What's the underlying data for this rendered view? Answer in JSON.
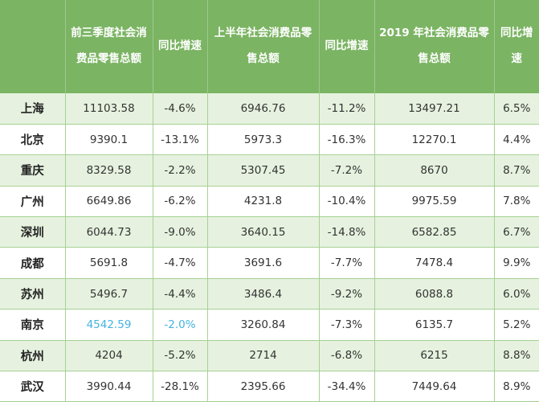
{
  "headers": [
    "",
    "前三季度社会消费品零售总额",
    "同比增速",
    "上半年社会消费品零售总额",
    "同比增速",
    "2019 年社会消费品零售总额",
    "同比增速"
  ],
  "rows": [
    [
      "上海",
      "11103.58",
      "-4.6%",
      "6946.76",
      "-11.2%",
      "13497.21",
      "6.5%"
    ],
    [
      "北京",
      "9390.1",
      "-13.1%",
      "5973.3",
      "-16.3%",
      "12270.1",
      "4.4%"
    ],
    [
      "重庆",
      "8329.58",
      "-2.2%",
      "5307.45",
      "-7.2%",
      "8670",
      "8.7%"
    ],
    [
      "广州",
      "6649.86",
      "-6.2%",
      "4231.8",
      "-10.4%",
      "9975.59",
      "7.8%"
    ],
    [
      "深圳",
      "6044.73",
      "-9.0%",
      "3640.15",
      "-14.8%",
      "6582.85",
      "6.7%"
    ],
    [
      "成都",
      "5691.8",
      "-4.7%",
      "3691.6",
      "-7.7%",
      "7478.4",
      "9.9%"
    ],
    [
      "苏州",
      "5496.7",
      "-4.4%",
      "3486.4",
      "-9.2%",
      "6088.8",
      "6.0%"
    ],
    [
      "南京",
      "4542.59",
      "-2.0%",
      "3260.84",
      "-7.3%",
      "6135.7",
      "5.2%"
    ],
    [
      "杭州",
      "4204",
      "-5.2%",
      "2714",
      "-6.8%",
      "6215",
      "8.8%"
    ],
    [
      "武汉",
      "3990.44",
      "-28.1%",
      "2395.66",
      "-34.4%",
      "7449.64",
      "8.9%"
    ]
  ],
  "colors": {
    "header_bg": "#7bb463",
    "row_alt_bg": "#e6f2df",
    "grid_line": "#a6d193",
    "highlight_text": "#45b3e0"
  }
}
